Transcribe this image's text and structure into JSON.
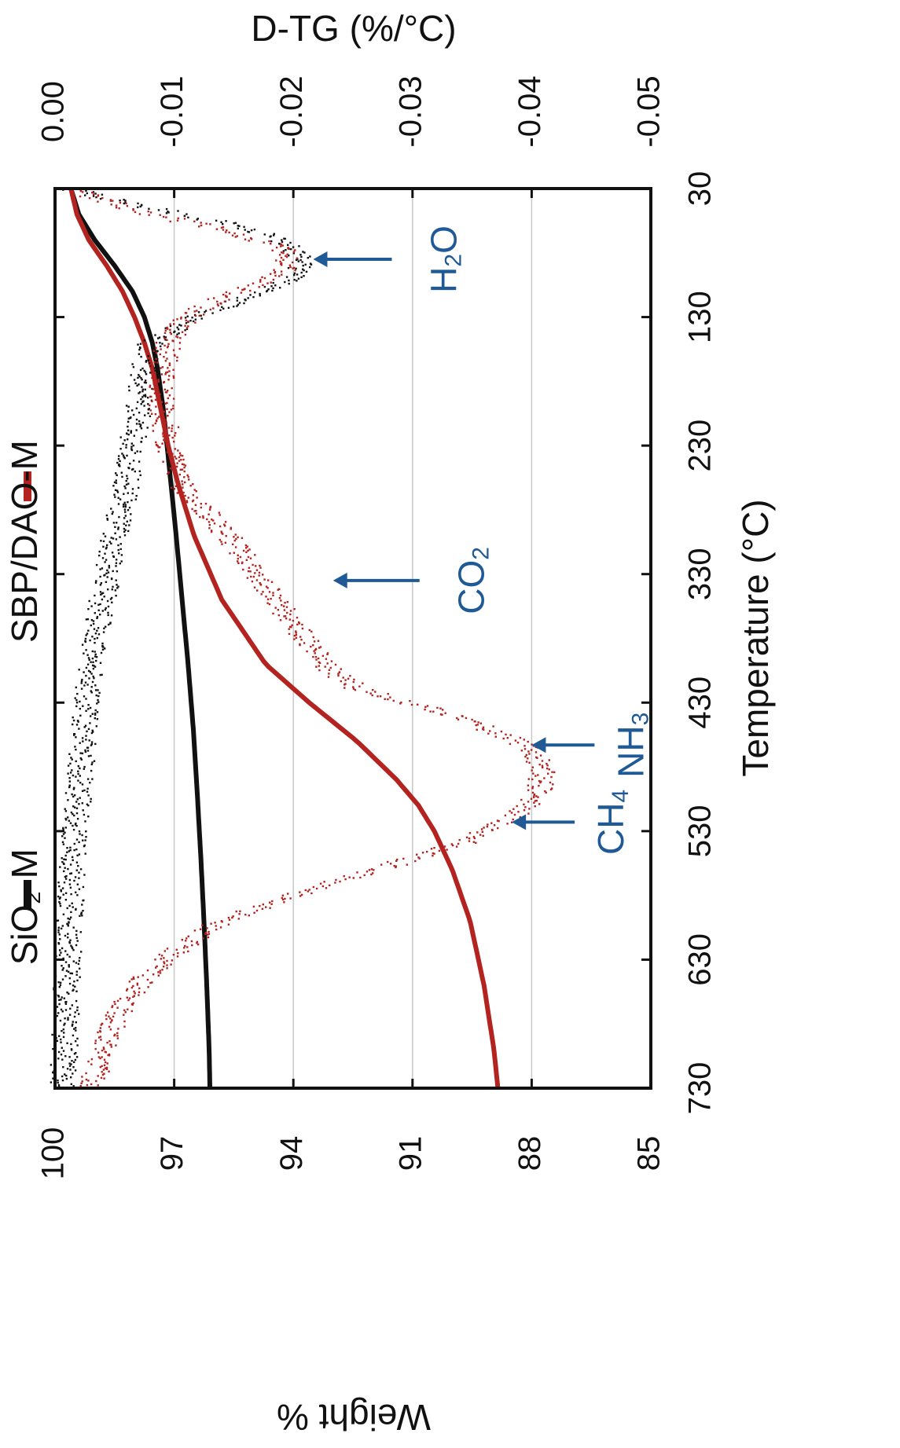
{
  "chart_data": {
    "type": "line",
    "orientation": "rotated 90° clockwise (temperature axis runs top-to-bottom on the page)",
    "x_axis": {
      "label": "Temperature (°C)",
      "range": [
        30,
        730
      ],
      "ticks": [
        "30",
        "130",
        "230",
        "330",
        "430",
        "530",
        "630",
        "730"
      ]
    },
    "y_axis_left": {
      "label": "Weight %",
      "range": [
        85,
        100
      ],
      "ticks": [
        "100",
        "97",
        "94",
        "91",
        "88",
        "85"
      ]
    },
    "y_axis_right": {
      "label": "D-TG (%/°C)",
      "range": [
        0.0,
        -0.05
      ],
      "ticks": [
        "0.00",
        "-0.01",
        "-0.02",
        "-0.03",
        "-0.04",
        "-0.05"
      ]
    },
    "grid": "horizontal gridlines at each weight tick",
    "legend": {
      "placement": "top",
      "items": [
        {
          "text": "SiO₂-M",
          "color": "#111111"
        },
        {
          "text": "SBP/DAO-M",
          "color": "#b3231f"
        }
      ]
    },
    "series": [
      {
        "name": "SiO₂-M",
        "axis": "weight",
        "style": "solid",
        "color": "#111111",
        "x": [
          30,
          50,
          70,
          90,
          110,
          130,
          150,
          170,
          200,
          230,
          260,
          300,
          350,
          400,
          450,
          500,
          550,
          600,
          650,
          700,
          730
        ],
        "y": [
          99.6,
          99.4,
          99.0,
          98.5,
          98.05,
          97.75,
          97.55,
          97.42,
          97.28,
          97.18,
          97.08,
          96.95,
          96.8,
          96.65,
          96.52,
          96.42,
          96.33,
          96.25,
          96.18,
          96.12,
          96.1
        ]
      },
      {
        "name": "SBP/DAO-M",
        "axis": "weight",
        "style": "solid",
        "color": "#b3231f",
        "x": [
          30,
          50,
          70,
          90,
          110,
          130,
          150,
          170,
          200,
          230,
          260,
          300,
          350,
          400,
          430,
          460,
          490,
          510,
          530,
          560,
          600,
          650,
          700,
          730
        ],
        "y": [
          99.6,
          99.45,
          99.15,
          98.7,
          98.3,
          98.0,
          97.75,
          97.55,
          97.35,
          97.15,
          96.9,
          96.5,
          95.8,
          94.7,
          93.6,
          92.4,
          91.4,
          90.85,
          90.45,
          90.0,
          89.55,
          89.2,
          88.95,
          88.85
        ]
      },
      {
        "name": "SiO₂-M D-TG",
        "axis": "dtg",
        "style": "dotted",
        "color": "#111111",
        "x": [
          30,
          45,
          60,
          75,
          85,
          95,
          105,
          115,
          130,
          150,
          170,
          200,
          230,
          260,
          300,
          350,
          400,
          450,
          500,
          550,
          600,
          650,
          700,
          730
        ],
        "y": [
          -0.001,
          -0.008,
          -0.016,
          -0.02,
          -0.0205,
          -0.0205,
          -0.019,
          -0.016,
          -0.012,
          -0.008,
          -0.0075,
          -0.007,
          -0.0065,
          -0.006,
          -0.005,
          -0.004,
          -0.003,
          -0.0025,
          -0.002,
          -0.0015,
          -0.0012,
          -0.001,
          -0.0008,
          -0.0007
        ]
      },
      {
        "name": "SBP/DAO-M D-TG",
        "axis": "dtg",
        "style": "dotted",
        "color": "#b3231f",
        "x": [
          30,
          45,
          60,
          75,
          85,
          95,
          105,
          115,
          130,
          150,
          170,
          200,
          230,
          260,
          300,
          350,
          380,
          400,
          420,
          440,
          460,
          475,
          485,
          500,
          520,
          540,
          560,
          580,
          600,
          630,
          660,
          700,
          730
        ],
        "y": [
          -0.001,
          -0.006,
          -0.013,
          -0.019,
          -0.0195,
          -0.019,
          -0.017,
          -0.014,
          -0.011,
          -0.0095,
          -0.009,
          -0.009,
          -0.0095,
          -0.0105,
          -0.0145,
          -0.0185,
          -0.021,
          -0.0225,
          -0.0255,
          -0.0335,
          -0.039,
          -0.0405,
          -0.041,
          -0.0405,
          -0.0385,
          -0.034,
          -0.027,
          -0.02,
          -0.014,
          -0.009,
          -0.006,
          -0.004,
          -0.003
        ]
      }
    ],
    "annotations": [
      {
        "text": "H",
        "sub": "2",
        "text2": "O",
        "temperature": 85,
        "arrow_tip_weight": 93.5,
        "color": "#1f5a96"
      },
      {
        "text": "CO",
        "sub": "2",
        "text2": "",
        "temperature": 335,
        "arrow_tip_weight": 93.0,
        "color": "#1f5a96"
      },
      {
        "text": "NH",
        "sub": "3",
        "text2": "",
        "temperature": 463,
        "arrow_tip_weight": 88.0,
        "color": "#1f5a96"
      },
      {
        "text": "CH",
        "sub": "4",
        "text2": "",
        "temperature": 523,
        "arrow_tip_weight": 88.5,
        "color": "#1f5a96"
      }
    ]
  }
}
